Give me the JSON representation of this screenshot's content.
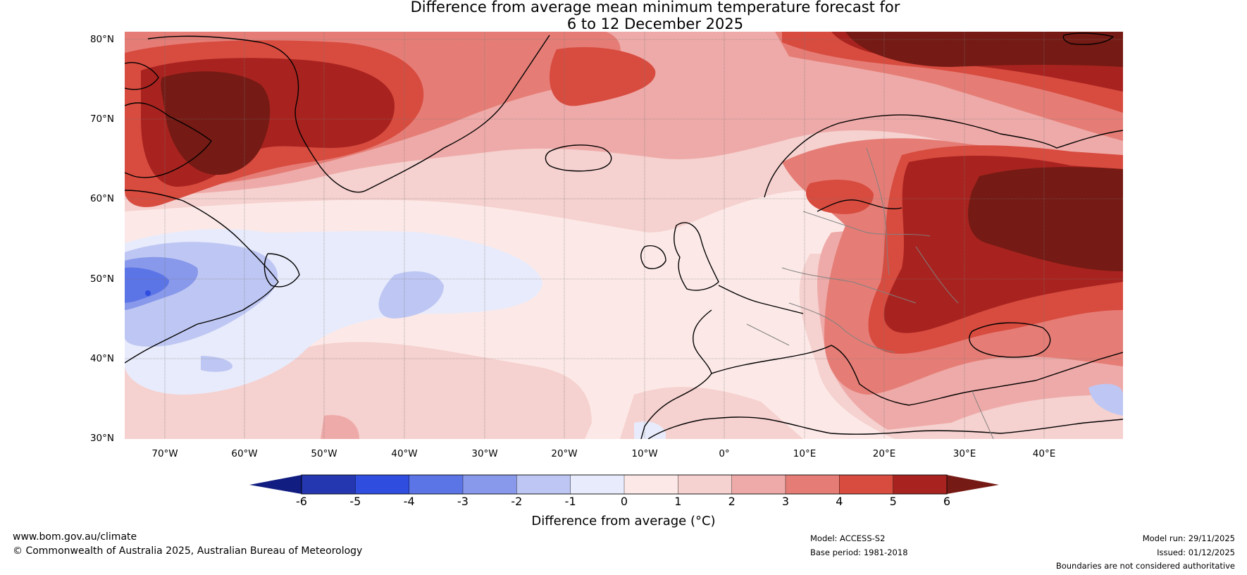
{
  "title": {
    "line1": "Difference from average mean minimum temperature forecast for",
    "line2": "6 to 12 December 2025"
  },
  "map": {
    "region": "North Atlantic and Europe",
    "lat_labels": [
      "80°N",
      "70°N",
      "60°N",
      "50°N",
      "40°N",
      "30°N"
    ],
    "lon_labels": [
      "70°W",
      "60°W",
      "50°W",
      "40°W",
      "30°W",
      "20°W",
      "10°W",
      "0°",
      "10°E",
      "20°E",
      "30°E",
      "40°E"
    ],
    "extent": {
      "lon_min": -75,
      "lon_max": 50,
      "lat_min": 30,
      "lat_max": 81
    }
  },
  "colorbar": {
    "ticks": [
      "-6",
      "-5",
      "-4",
      "-3",
      "-2",
      "-1",
      "0",
      "1",
      "2",
      "3",
      "4",
      "5",
      "6"
    ],
    "colors": [
      "#111d80",
      "#2437b0",
      "#2f4ddf",
      "#5b74e6",
      "#8898ea",
      "#bec7f3",
      "#e8ebfb",
      "#fce9e7",
      "#f5d1cf",
      "#eeaaa8",
      "#e57d76",
      "#d84b3f",
      "#a8231f",
      "#751a14"
    ],
    "label": "Difference from average (°C)"
  },
  "footer": {
    "website": "www.bom.gov.au/climate",
    "copyright": "© Commonwealth of Australia 2025, Australian Bureau of Meteorology",
    "model": "Model: ACCESS-S2",
    "base_period": "Base period: 1981-2018",
    "model_run": "Model run: 29/11/2025",
    "issued": "Issued: 01/12/2025",
    "disclaimer": "Boundaries are not considered authoritative"
  }
}
